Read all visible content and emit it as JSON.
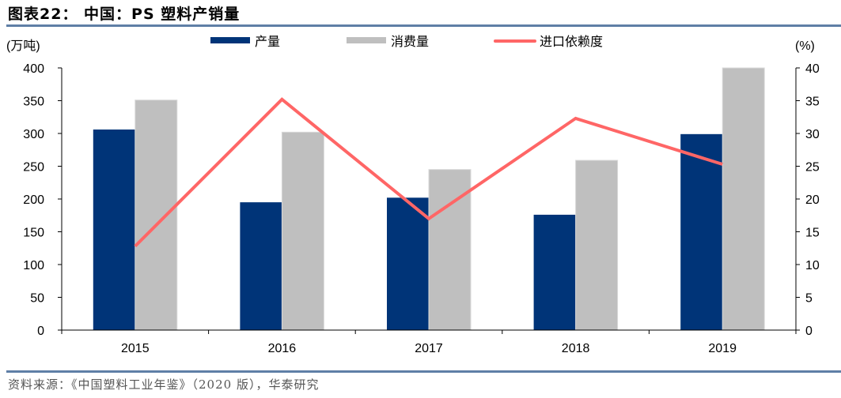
{
  "header": {
    "title": "图表22：  中国：PS 塑料产销量"
  },
  "footer": {
    "source": "资料来源：《中国塑料工业年鉴》（2020 版），华泰研究"
  },
  "axes": {
    "left_unit": "(万吨)",
    "right_unit": "(%)",
    "left_ticks": [
      "0",
      "50",
      "100",
      "150",
      "200",
      "250",
      "300",
      "350",
      "400"
    ],
    "right_ticks": [
      "0",
      "5",
      "10",
      "15",
      "20",
      "25",
      "30",
      "35",
      "40"
    ]
  },
  "legend": [
    {
      "label": "产量",
      "color": "#003478",
      "type": "bar"
    },
    {
      "label": "消费量",
      "color": "#bfbfbf",
      "type": "bar"
    },
    {
      "label": "进口依赖度",
      "color": "#ff6666",
      "type": "line"
    }
  ],
  "chart_data": {
    "type": "bar",
    "title": "中国：PS 塑料产销量",
    "categories": [
      "2015",
      "2016",
      "2017",
      "2018",
      "2019"
    ],
    "series": [
      {
        "name": "产量",
        "axis": "left",
        "type": "bar",
        "color": "#003478",
        "values": [
          306,
          195,
          202,
          176,
          299
        ]
      },
      {
        "name": "消费量",
        "axis": "left",
        "type": "bar",
        "color": "#bfbfbf",
        "values": [
          351,
          302,
          245,
          259,
          400
        ]
      },
      {
        "name": "进口依赖度",
        "axis": "right",
        "type": "line",
        "color": "#ff6666",
        "values": [
          12.8,
          35.2,
          17.0,
          32.3,
          25.3
        ]
      }
    ],
    "xlabel": "",
    "ylabel": "(万吨)",
    "y2label": "(%)",
    "ylim": [
      0,
      400
    ],
    "y2lim": [
      0,
      40
    ],
    "grid": false,
    "legend_position": "top"
  }
}
